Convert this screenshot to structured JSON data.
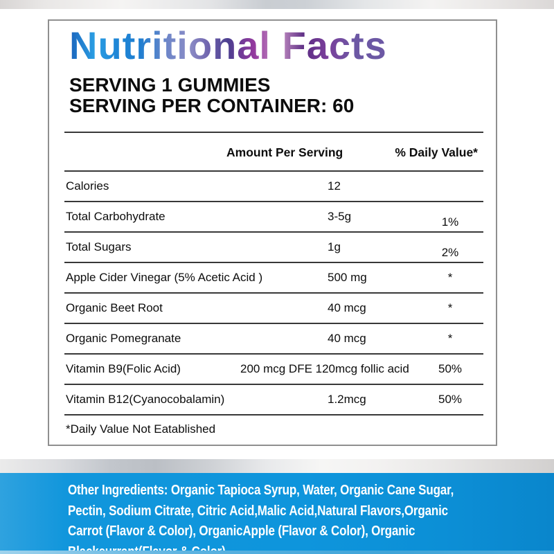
{
  "label": {
    "title": "Nutritional Facts",
    "serving_line1": "SERVING 1 GUMMIES",
    "serving_line2": "SERVING PER CONTAINER: 60",
    "columns": {
      "amount": "Amount Per Serving",
      "daily_value": "% Daily Value*"
    },
    "rows": [
      {
        "name": "Calories",
        "amount": "12",
        "dv": ""
      },
      {
        "name": "Total Carbohydrate",
        "amount": "3-5g",
        "dv": "1%"
      },
      {
        "name": "Total Sugars",
        "amount": "1g",
        "dv": "2%"
      },
      {
        "name": "Apple Cider Vinegar (5% Acetic Acid )",
        "amount": "500 mg",
        "dv": "*"
      },
      {
        "name": "Organic Beet Root",
        "amount": "40 mcg",
        "dv": "*"
      },
      {
        "name": "Organic Pomegranate",
        "amount": "40 mcg",
        "dv": "*"
      },
      {
        "name": "Vitamin B9(Folic Acid)",
        "amount": "200 mcg DFE 120mcg follic acid",
        "dv": "50%"
      },
      {
        "name": "Vitamin B12(Cyanocobalamin)",
        "amount": "1.2mcg",
        "dv": "50%"
      }
    ],
    "footnote": "*Daily Value Not Eatablished"
  },
  "ingredients": {
    "lines": [
      "Other Ingredients: Organic Tapioca Syrup, Water, Organic Cane Sugar,",
      "Pectin, Sodium Citrate, Citric Acid,Malic Acid,Natural Flavors,Organic",
      "Carrot (Flavor & Color), OrganicApple (Flavor & Color), Organic",
      "Blackcurrant(Flavor & Color)"
    ]
  },
  "colors": {
    "band_blue": "#0e95dc",
    "title_gradient_start": "#1a63bc",
    "title_gradient_mid": "#93399e",
    "title_gradient_end": "#6c58a4",
    "table_line": "#383838",
    "panel_border": "#8f8f8f"
  }
}
